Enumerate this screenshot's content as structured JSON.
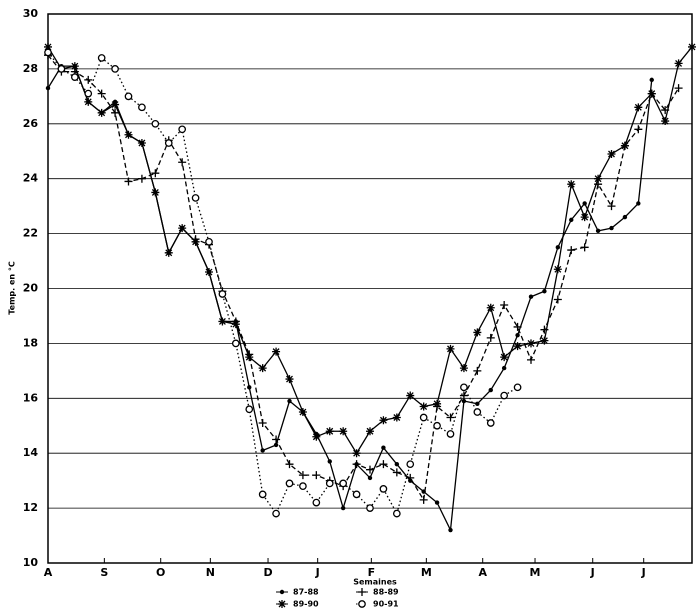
{
  "chart_data": {
    "type": "line",
    "y_label": "Temp. en °C",
    "x_label": "Semaines",
    "x": [
      0,
      1,
      2,
      3,
      4,
      5,
      6,
      7,
      8,
      9,
      10,
      11,
      12,
      13,
      14,
      15,
      16,
      17,
      18,
      19,
      20,
      21,
      22,
      23,
      24,
      25,
      26,
      27,
      28,
      29,
      30,
      31,
      32,
      33,
      34,
      35,
      36,
      37,
      38,
      39,
      40,
      41,
      42,
      43,
      44,
      45,
      46,
      47,
      48
    ],
    "xlim": [
      0,
      48
    ],
    "xticks": [
      {
        "value": 0,
        "label": "A"
      },
      {
        "value": 4.2,
        "label": "S"
      },
      {
        "value": 8.4,
        "label": "O"
      },
      {
        "value": 12.1,
        "label": "N"
      },
      {
        "value": 16.4,
        "label": "D"
      },
      {
        "value": 20.1,
        "label": "J"
      },
      {
        "value": 24.1,
        "label": "F"
      },
      {
        "value": 28.2,
        "label": "M"
      },
      {
        "value": 32.4,
        "label": "A"
      },
      {
        "value": 36.3,
        "label": "M"
      },
      {
        "value": 40.6,
        "label": "J"
      },
      {
        "value": 44.4,
        "label": "J"
      }
    ],
    "ylim": [
      10,
      30
    ],
    "yticks": [
      10,
      12,
      14,
      16,
      18,
      20,
      22,
      24,
      26,
      28,
      30
    ],
    "grid": true,
    "series": [
      {
        "name": "87-88",
        "color": "#000000",
        "line_style": "solid",
        "marker": "dot",
        "values": [
          27.3,
          28.1,
          28.1,
          26.8,
          26.4,
          26.8,
          25.6,
          25.3,
          23.5,
          21.3,
          22.2,
          21.7,
          20.6,
          18.8,
          18.8,
          16.4,
          14.1,
          14.3,
          15.9,
          15.5,
          14.7,
          13.7,
          12.0,
          13.6,
          13.1,
          14.2,
          13.6,
          13.0,
          12.6,
          12.2,
          11.2,
          15.9,
          15.8,
          16.3,
          17.1,
          18.3,
          19.7,
          19.9,
          21.5,
          22.5,
          23.1,
          22.1,
          22.2,
          22.6,
          23.1,
          27.6,
          null,
          null,
          null
        ]
      },
      {
        "name": "88-89",
        "color": "#000000",
        "line_style": "dashed",
        "marker": "plus",
        "values": [
          28.5,
          27.9,
          27.9,
          27.6,
          27.1,
          26.4,
          23.9,
          24.0,
          24.2,
          25.4,
          24.6,
          21.8,
          21.6,
          19.9,
          18.8,
          17.6,
          15.1,
          14.5,
          13.6,
          13.2,
          13.2,
          13.0,
          12.8,
          13.6,
          13.4,
          13.6,
          13.3,
          13.1,
          12.3,
          15.7,
          15.3,
          16.1,
          17.0,
          18.2,
          19.4,
          18.6,
          17.4,
          18.5,
          19.6,
          21.4,
          21.5,
          23.8,
          23.0,
          25.2,
          25.8,
          27.1,
          26.5,
          27.3,
          null
        ]
      },
      {
        "name": "89-90",
        "color": "#000000",
        "line_style": "solid",
        "marker": "star",
        "values": [
          28.8,
          28.0,
          28.1,
          26.8,
          26.4,
          26.7,
          25.6,
          25.3,
          23.5,
          21.3,
          22.2,
          21.7,
          20.6,
          18.8,
          18.7,
          17.5,
          17.1,
          17.7,
          16.7,
          15.5,
          14.6,
          14.8,
          14.8,
          14.0,
          14.8,
          15.2,
          15.3,
          16.1,
          15.7,
          15.8,
          17.8,
          17.1,
          18.4,
          19.3,
          17.5,
          17.9,
          18.0,
          18.1,
          20.7,
          23.8,
          22.6,
          24.0,
          24.9,
          25.2,
          26.6,
          27.1,
          26.1,
          28.2,
          28.8
        ]
      },
      {
        "name": "90-91",
        "color": "#000000",
        "line_style": "dotted",
        "marker": "circle",
        "values": [
          28.6,
          28.0,
          27.7,
          27.1,
          28.4,
          28.0,
          27.0,
          26.6,
          26.0,
          25.3,
          25.8,
          23.3,
          21.7,
          19.8,
          18.0,
          15.6,
          12.5,
          11.8,
          12.9,
          12.8,
          12.2,
          12.9,
          12.9,
          12.5,
          12.0,
          12.7,
          11.8,
          13.6,
          15.3,
          15.0,
          14.7,
          16.4,
          15.5,
          15.1,
          16.1,
          16.4,
          null,
          null,
          null,
          null,
          null,
          null,
          null,
          null,
          null,
          null,
          null,
          null,
          null
        ]
      }
    ]
  }
}
